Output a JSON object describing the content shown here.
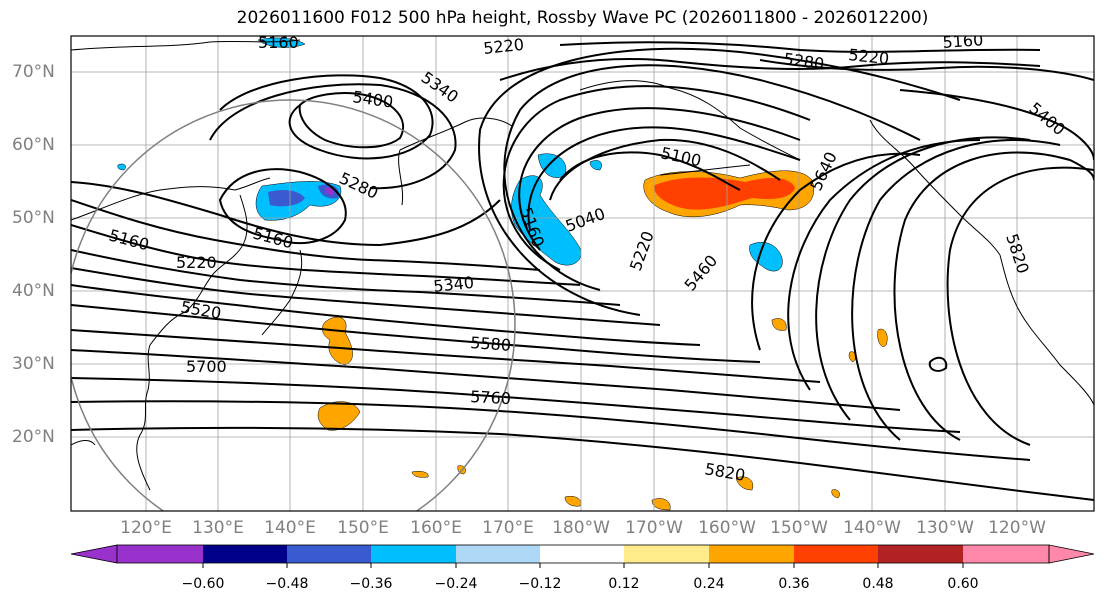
{
  "title": "2026011600 F012 500 hPa height, Rossby Wave PC (2026011800 - 2026012200)",
  "map": {
    "lat_labels": [
      "70°N",
      "60°N",
      "50°N",
      "40°N",
      "30°N",
      "20°N"
    ],
    "lon_labels": [
      "120°E",
      "130°E",
      "140°E",
      "150°E",
      "160°E",
      "170°E",
      "180°W",
      "170°W",
      "160°W",
      "150°W",
      "140°W",
      "130°W",
      "120°W"
    ],
    "contour_labels": [
      "5160",
      "5220",
      "5280",
      "5220",
      "5160",
      "5340",
      "5400",
      "5400",
      "5280",
      "5160",
      "5100",
      "5160",
      "5040",
      "5220",
      "5160",
      "5220",
      "5340",
      "5460",
      "5640",
      "5820",
      "5520",
      "5580",
      "5700",
      "5760",
      "5820"
    ]
  },
  "colorbar": {
    "ticks": [
      "−0.60",
      "−0.48",
      "−0.36",
      "−0.24",
      "−0.12",
      "0.12",
      "0.24",
      "0.36",
      "0.48",
      "0.60"
    ],
    "colors": [
      "#9932cc",
      "#00008b",
      "#3a5bcf",
      "#00bfff",
      "#add8f6",
      "#ffffff",
      "#ffeb8a",
      "#ffa500",
      "#ff4000",
      "#b22222",
      "#ff88aa"
    ]
  }
}
